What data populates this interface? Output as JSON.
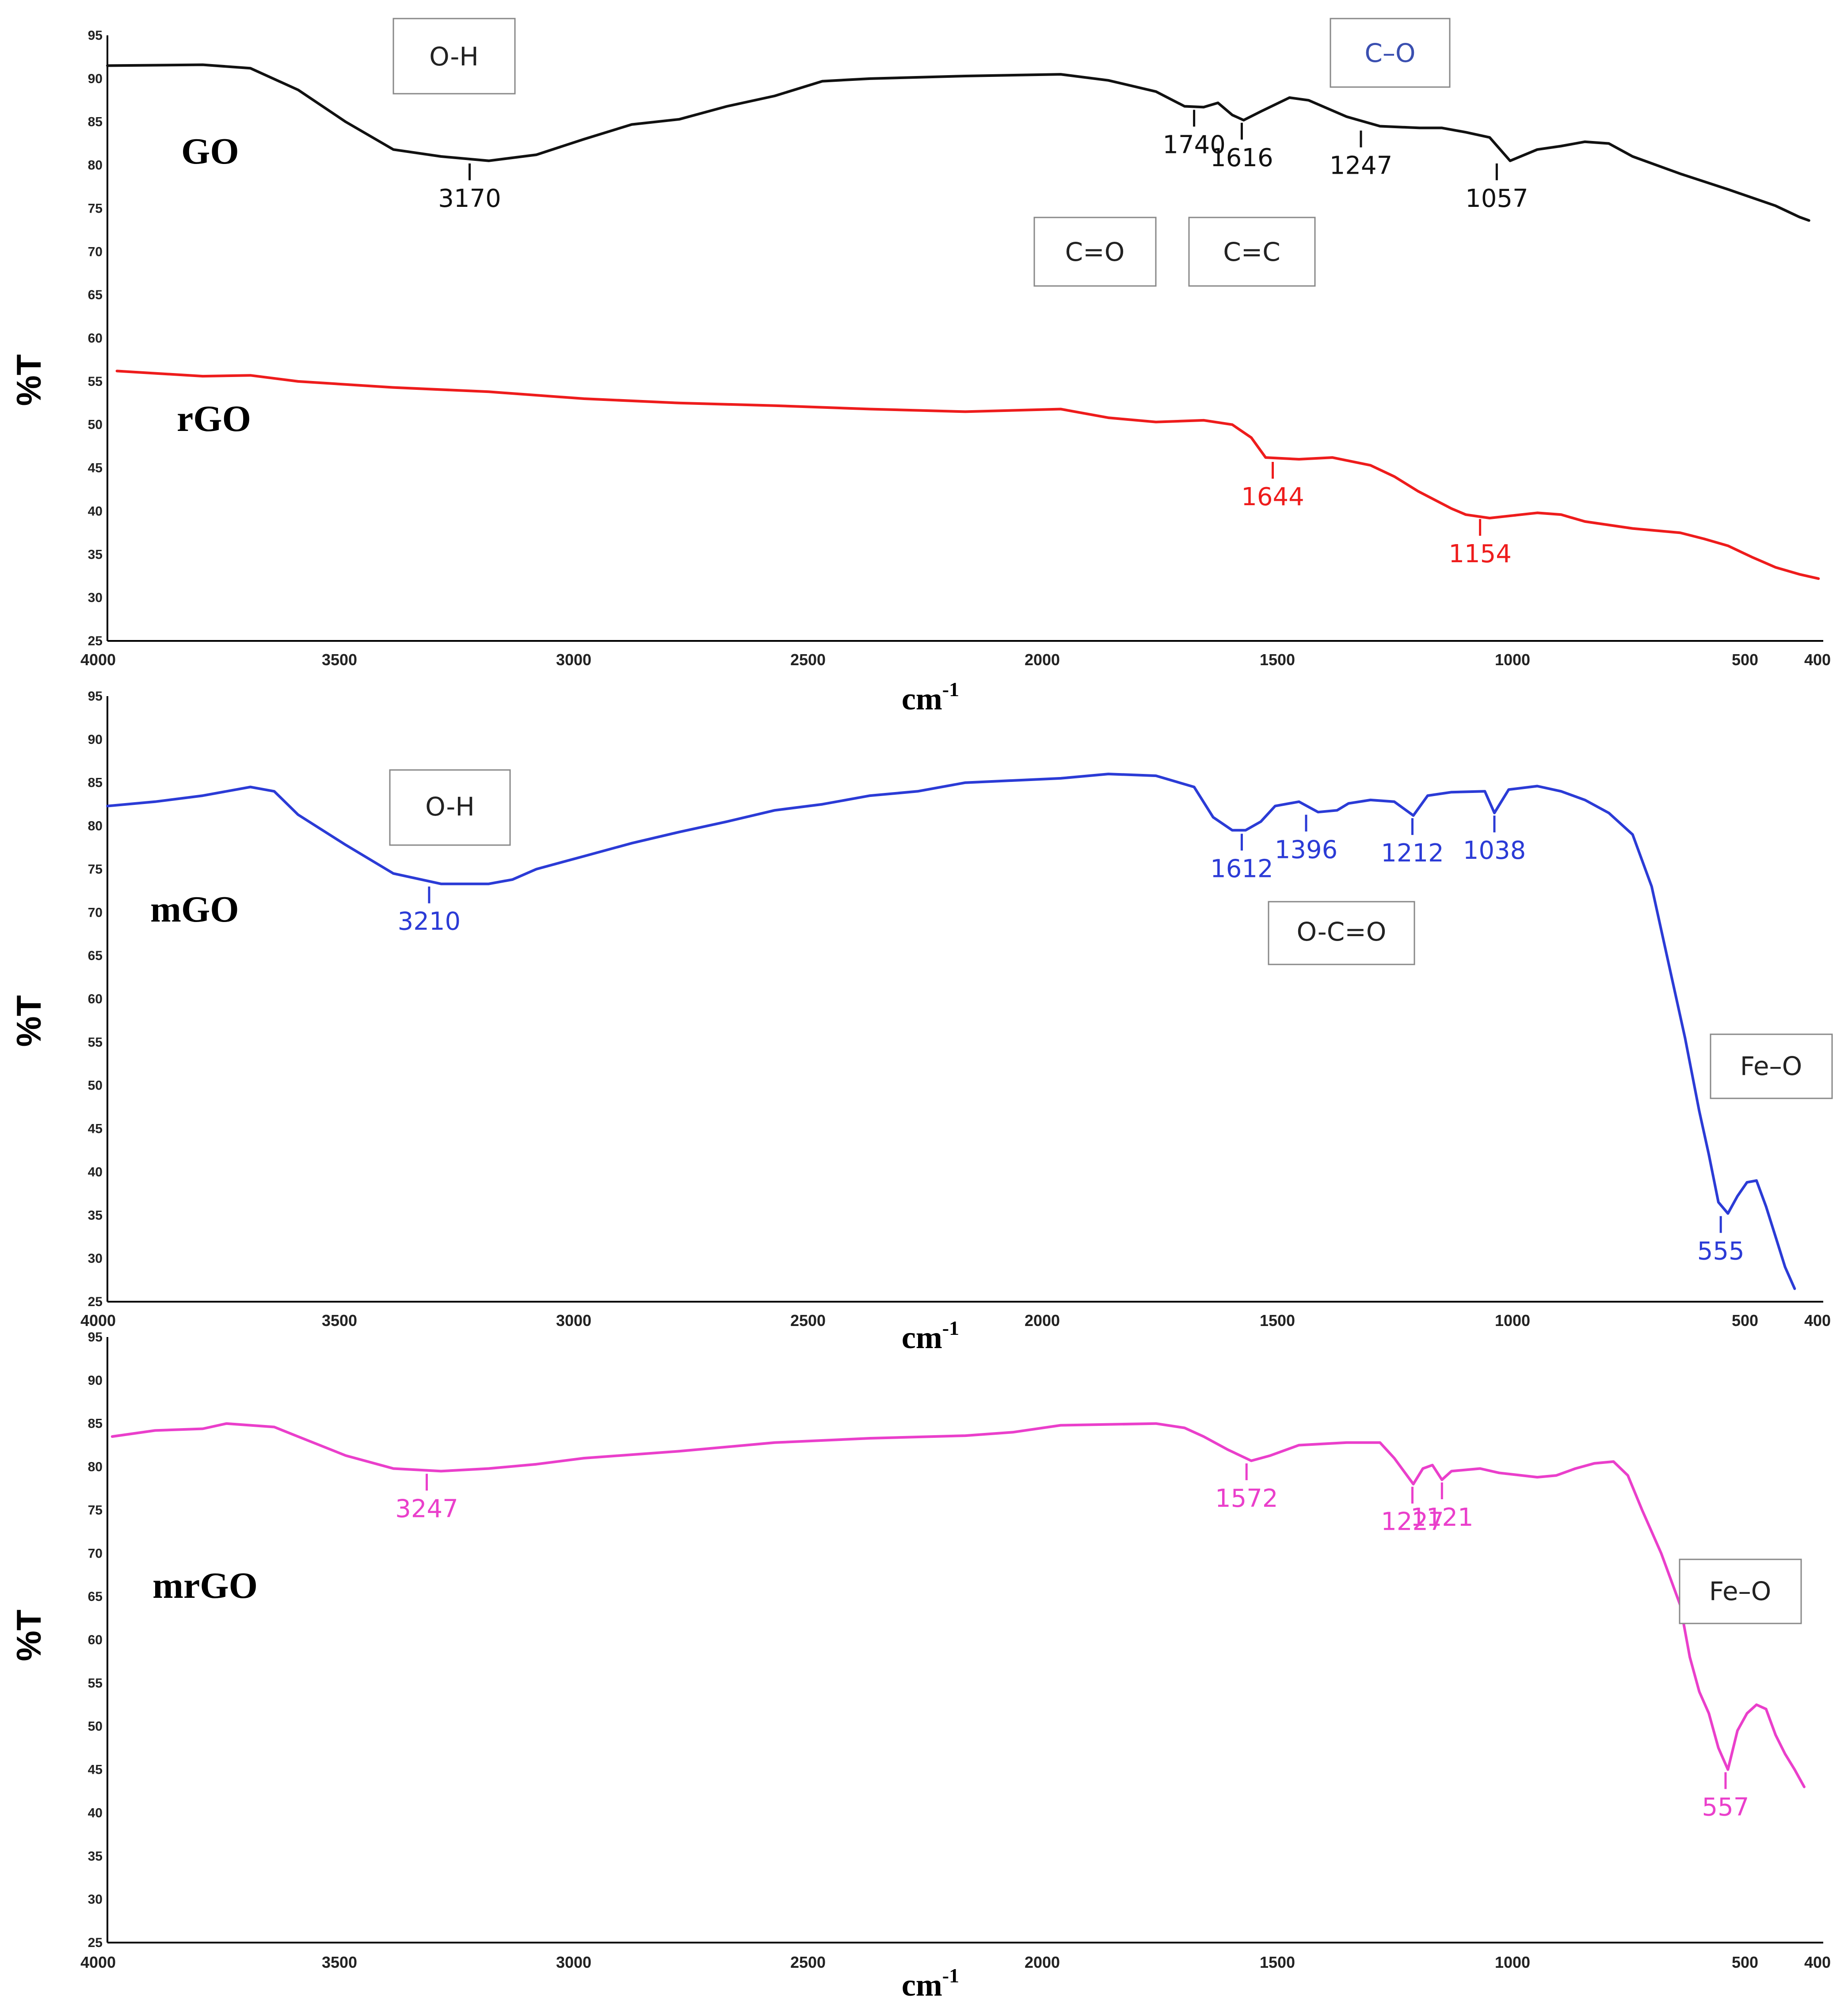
{
  "chart_data": [
    {
      "type": "line",
      "panel": "top",
      "ylabel": "%T",
      "xlabel": "cm",
      "xlabel_sup": "-1",
      "xlim": [
        4000,
        400
      ],
      "ylim": [
        25,
        95
      ],
      "x_ticks": [
        "4000",
        "3500",
        "3000",
        "2500",
        "2000",
        "1500",
        "1000",
        "500",
        "400"
      ],
      "y_ticks": [
        "95",
        "90",
        "85",
        "80",
        "75",
        "70",
        "65",
        "60",
        "55",
        "50",
        "45",
        "40",
        "35",
        "30",
        "25"
      ],
      "series": [
        {
          "name": "GO",
          "color": "#111111",
          "points": [
            [
              4000,
              91.5
            ],
            [
              3800,
              91.6
            ],
            [
              3700,
              91.2
            ],
            [
              3600,
              88.7
            ],
            [
              3500,
              85
            ],
            [
              3400,
              81.8
            ],
            [
              3300,
              81
            ],
            [
              3200,
              80.5
            ],
            [
              3100,
              81.2
            ],
            [
              3000,
              83
            ],
            [
              2900,
              84.7
            ],
            [
              2800,
              85.3
            ],
            [
              2700,
              86.8
            ],
            [
              2600,
              88
            ],
            [
              2500,
              89.7
            ],
            [
              2400,
              90
            ],
            [
              2200,
              90.3
            ],
            [
              2000,
              90.5
            ],
            [
              1900,
              89.8
            ],
            [
              1800,
              88.5
            ],
            [
              1740,
              86.8
            ],
            [
              1700,
              86.7
            ],
            [
              1670,
              87.2
            ],
            [
              1640,
              85.8
            ],
            [
              1616,
              85.2
            ],
            [
              1580,
              86.2
            ],
            [
              1520,
              87.8
            ],
            [
              1480,
              87.5
            ],
            [
              1400,
              85.6
            ],
            [
              1330,
              84.5
            ],
            [
              1247,
              84.3
            ],
            [
              1200,
              84.3
            ],
            [
              1150,
              83.8
            ],
            [
              1100,
              83.2
            ],
            [
              1057,
              80.5
            ],
            [
              1000,
              81.8
            ],
            [
              950,
              82.2
            ],
            [
              900,
              82.7
            ],
            [
              850,
              82.5
            ],
            [
              800,
              81
            ],
            [
              700,
              79
            ],
            [
              600,
              77.2
            ],
            [
              500,
              75.3
            ],
            [
              450,
              74
            ],
            [
              430,
              73.6
            ]
          ],
          "peaks": [
            {
              "label": "3170",
              "x": 3240,
              "y": 80.5
            },
            {
              "label": "1740",
              "x": 1720,
              "y": 86.7
            },
            {
              "label": "1616",
              "x": 1620,
              "y": 85.2
            },
            {
              "label": "1247",
              "x": 1370,
              "y": 84.3
            },
            {
              "label": "1057",
              "x": 1085,
              "y": 80.5
            }
          ]
        },
        {
          "name": "rGO",
          "color": "#ee1c1c",
          "points": [
            [
              3980,
              56.2
            ],
            [
              3800,
              55.6
            ],
            [
              3700,
              55.7
            ],
            [
              3600,
              55
            ],
            [
              3400,
              54.3
            ],
            [
              3200,
              53.8
            ],
            [
              3000,
              53
            ],
            [
              2800,
              52.5
            ],
            [
              2600,
              52.2
            ],
            [
              2400,
              51.8
            ],
            [
              2200,
              51.5
            ],
            [
              2000,
              51.8
            ],
            [
              1900,
              50.8
            ],
            [
              1800,
              50.3
            ],
            [
              1700,
              50.5
            ],
            [
              1640,
              50
            ],
            [
              1600,
              48.5
            ],
            [
              1570,
              46.2
            ],
            [
              1500,
              46
            ],
            [
              1430,
              46.2
            ],
            [
              1350,
              45.3
            ],
            [
              1300,
              44
            ],
            [
              1250,
              42.3
            ],
            [
              1180,
              40.3
            ],
            [
              1150,
              39.6
            ],
            [
              1100,
              39.2
            ],
            [
              1050,
              39.5
            ],
            [
              1000,
              39.8
            ],
            [
              950,
              39.6
            ],
            [
              900,
              38.8
            ],
            [
              800,
              38
            ],
            [
              700,
              37.5
            ],
            [
              650,
              36.8
            ],
            [
              600,
              36
            ],
            [
              550,
              34.7
            ],
            [
              500,
              33.5
            ],
            [
              450,
              32.7
            ],
            [
              410,
              32.2
            ]
          ],
          "peaks": [
            {
              "label": "1644",
              "x": 1555,
              "y": 46
            },
            {
              "label": "1154",
              "x": 1120,
              "y": 39.4
            }
          ]
        }
      ],
      "annotations": [
        "O-H",
        "C–O",
        "C=O",
        "C=C"
      ]
    },
    {
      "type": "line",
      "panel": "middle",
      "ylabel": "%T",
      "xlabel": "cm",
      "xlabel_sup": "-1",
      "xlim": [
        4000,
        400
      ],
      "ylim": [
        25,
        95
      ],
      "x_ticks": [
        "4000",
        "3500",
        "3000",
        "2500",
        "2000",
        "1500",
        "1000",
        "500",
        "400"
      ],
      "y_ticks": [
        "95",
        "90",
        "85",
        "80",
        "75",
        "70",
        "65",
        "60",
        "55",
        "50",
        "45",
        "40",
        "35",
        "30",
        "25"
      ],
      "series": [
        {
          "name": "mGO",
          "color": "#2b3bd6",
          "points": [
            [
              4000,
              82.3
            ],
            [
              3900,
              82.8
            ],
            [
              3800,
              83.5
            ],
            [
              3700,
              84.5
            ],
            [
              3650,
              84
            ],
            [
              3600,
              81.3
            ],
            [
              3500,
              77.8
            ],
            [
              3400,
              74.5
            ],
            [
              3300,
              73.3
            ],
            [
              3200,
              73.3
            ],
            [
              3150,
              73.8
            ],
            [
              3100,
              75
            ],
            [
              3000,
              76.5
            ],
            [
              2900,
              78
            ],
            [
              2800,
              79.3
            ],
            [
              2700,
              80.5
            ],
            [
              2600,
              81.8
            ],
            [
              2500,
              82.5
            ],
            [
              2400,
              83.5
            ],
            [
              2300,
              84
            ],
            [
              2200,
              85
            ],
            [
              2000,
              85.5
            ],
            [
              1900,
              86
            ],
            [
              1800,
              85.8
            ],
            [
              1720,
              84.5
            ],
            [
              1680,
              81
            ],
            [
              1640,
              79.5
            ],
            [
              1612,
              79.5
            ],
            [
              1580,
              80.5
            ],
            [
              1550,
              82.3
            ],
            [
              1500,
              82.8
            ],
            [
              1460,
              81.6
            ],
            [
              1420,
              81.8
            ],
            [
              1396,
              82.6
            ],
            [
              1350,
              83
            ],
            [
              1300,
              82.8
            ],
            [
              1260,
              81.2
            ],
            [
              1230,
              83.5
            ],
            [
              1180,
              83.9
            ],
            [
              1110,
              84
            ],
            [
              1090,
              81.5
            ],
            [
              1060,
              84.2
            ],
            [
              1000,
              84.6
            ],
            [
              950,
              84
            ],
            [
              900,
              83
            ],
            [
              850,
              81.5
            ],
            [
              800,
              79
            ],
            [
              760,
              73
            ],
            [
              720,
              63
            ],
            [
              690,
              55.5
            ],
            [
              660,
              47
            ],
            [
              640,
              42
            ],
            [
              620,
              36.5
            ],
            [
              600,
              35.2
            ],
            [
              580,
              37.2
            ],
            [
              560,
              38.8
            ],
            [
              540,
              39
            ],
            [
              520,
              36
            ],
            [
              500,
              32.5
            ],
            [
              480,
              29
            ],
            [
              460,
              26.5
            ]
          ],
          "peaks": [
            {
              "label": "3210",
              "x": 3325,
              "y": 73.3
            },
            {
              "label": "1612",
              "x": 1620,
              "y": 79.4
            },
            {
              "label": "1396",
              "x": 1485,
              "y": 81.6
            },
            {
              "label": "1212",
              "x": 1262,
              "y": 81.2
            },
            {
              "label": "1038",
              "x": 1090,
              "y": 81.5
            },
            {
              "label": "555",
              "x": 615,
              "y": 35.2
            }
          ]
        }
      ],
      "annotations": [
        "O-H",
        "O-C=O",
        "Fe–O"
      ]
    },
    {
      "type": "line",
      "panel": "bottom",
      "ylabel": "%T",
      "xlabel": "cm",
      "xlabel_sup": "-1",
      "xlim": [
        4000,
        400
      ],
      "ylim": [
        25,
        95
      ],
      "x_ticks": [
        "4000",
        "3500",
        "3000",
        "2500",
        "2000",
        "1500",
        "1000",
        "500",
        "400"
      ],
      "y_ticks": [
        "95",
        "90",
        "85",
        "80",
        "75",
        "70",
        "65",
        "60",
        "55",
        "50",
        "45",
        "40",
        "35",
        "30",
        "25"
      ],
      "series": [
        {
          "name": "mrGO",
          "color": "#ea3fcb",
          "points": [
            [
              3990,
              83.5
            ],
            [
              3900,
              84.2
            ],
            [
              3800,
              84.4
            ],
            [
              3750,
              85
            ],
            [
              3700,
              84.8
            ],
            [
              3650,
              84.6
            ],
            [
              3600,
              83.5
            ],
            [
              3500,
              81.3
            ],
            [
              3400,
              79.8
            ],
            [
              3300,
              79.5
            ],
            [
              3200,
              79.8
            ],
            [
              3100,
              80.3
            ],
            [
              3000,
              81
            ],
            [
              2800,
              81.8
            ],
            [
              2600,
              82.8
            ],
            [
              2400,
              83.3
            ],
            [
              2200,
              83.6
            ],
            [
              2100,
              84
            ],
            [
              2000,
              84.8
            ],
            [
              1800,
              85
            ],
            [
              1740,
              84.5
            ],
            [
              1700,
              83.5
            ],
            [
              1650,
              82
            ],
            [
              1600,
              80.7
            ],
            [
              1560,
              81.3
            ],
            [
              1500,
              82.5
            ],
            [
              1400,
              82.8
            ],
            [
              1330,
              82.8
            ],
            [
              1300,
              81
            ],
            [
              1260,
              78
            ],
            [
              1240,
              79.8
            ],
            [
              1220,
              80.2
            ],
            [
              1200,
              78.5
            ],
            [
              1180,
              79.5
            ],
            [
              1120,
              79.8
            ],
            [
              1080,
              79.3
            ],
            [
              1000,
              78.8
            ],
            [
              960,
              79
            ],
            [
              920,
              79.8
            ],
            [
              880,
              80.4
            ],
            [
              840,
              80.6
            ],
            [
              810,
              79
            ],
            [
              780,
              75
            ],
            [
              740,
              70
            ],
            [
              700,
              64
            ],
            [
              680,
              58
            ],
            [
              660,
              54
            ],
            [
              640,
              51.5
            ],
            [
              620,
              47.5
            ],
            [
              600,
              45
            ],
            [
              580,
              49.5
            ],
            [
              560,
              51.5
            ],
            [
              540,
              52.5
            ],
            [
              520,
              52
            ],
            [
              500,
              49
            ],
            [
              480,
              46.8
            ],
            [
              460,
              45
            ],
            [
              440,
              43
            ]
          ],
          "peaks": [
            {
              "label": "3247",
              "x": 3330,
              "y": 79.5
            },
            {
              "label": "1572",
              "x": 1610,
              "y": 80.7
            },
            {
              "label": "1227",
              "x": 1262,
              "y": 78
            },
            {
              "label": "1121",
              "x": 1200,
              "y": 78.5
            },
            {
              "label": "557",
              "x": 605,
              "y": 45
            }
          ]
        }
      ],
      "annotations": [
        "Fe–O"
      ]
    }
  ]
}
